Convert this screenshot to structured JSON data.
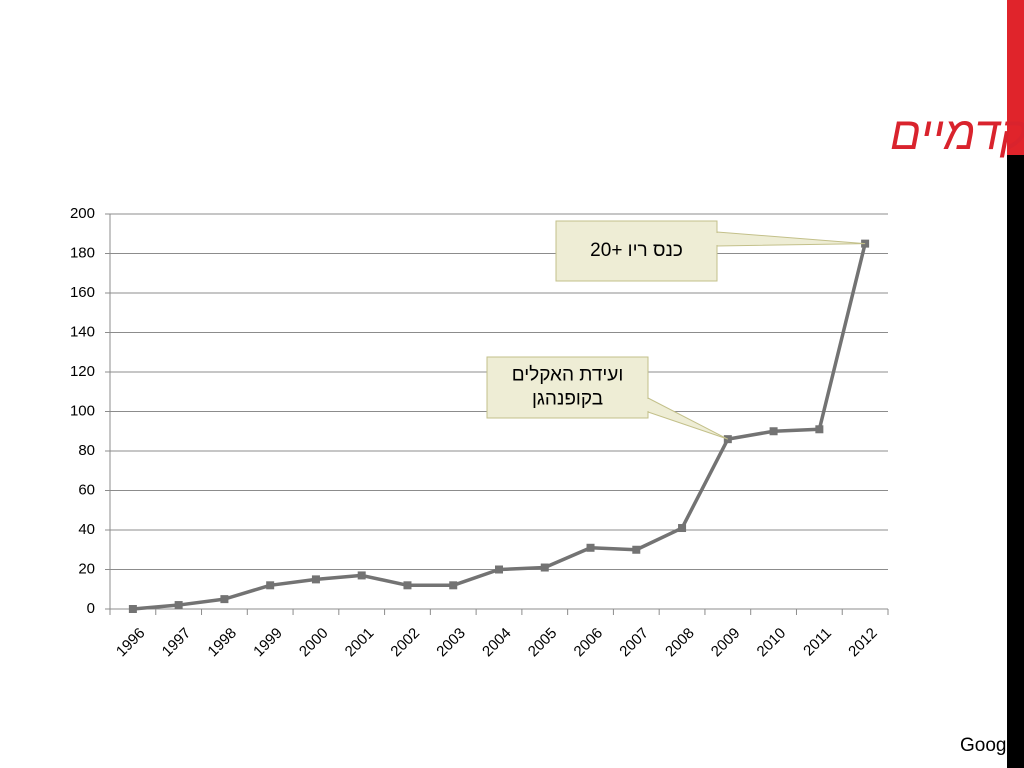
{
  "chart_data": {
    "type": "line",
    "title": "מעבר צודק – מאמרים אקדמיים",
    "categories": [
      "1996",
      "1997",
      "1998",
      "1999",
      "2000",
      "2001",
      "2002",
      "2003",
      "2004",
      "2005",
      "2006",
      "2007",
      "2008",
      "2009",
      "2010",
      "2011",
      "2012"
    ],
    "series": [
      {
        "color": "#737373",
        "values": [
          0,
          2,
          5,
          12,
          15,
          17,
          12,
          12,
          20,
          21,
          31,
          30,
          41,
          86,
          90,
          91,
          185
        ]
      }
    ],
    "ylim": [
      0,
      200
    ],
    "yticks": [
      0,
      20,
      40,
      60,
      80,
      100,
      120,
      140,
      160,
      180,
      200
    ],
    "grid": true,
    "annotations": [
      {
        "lines": [
          "כנס ריו +20"
        ]
      },
      {
        "lines": [
          "ועידת האקלים",
          "בקופנהגן"
        ]
      }
    ],
    "source": "מקור: חיפוש המונח climate, “just transition” ב-Google Scholar"
  }
}
